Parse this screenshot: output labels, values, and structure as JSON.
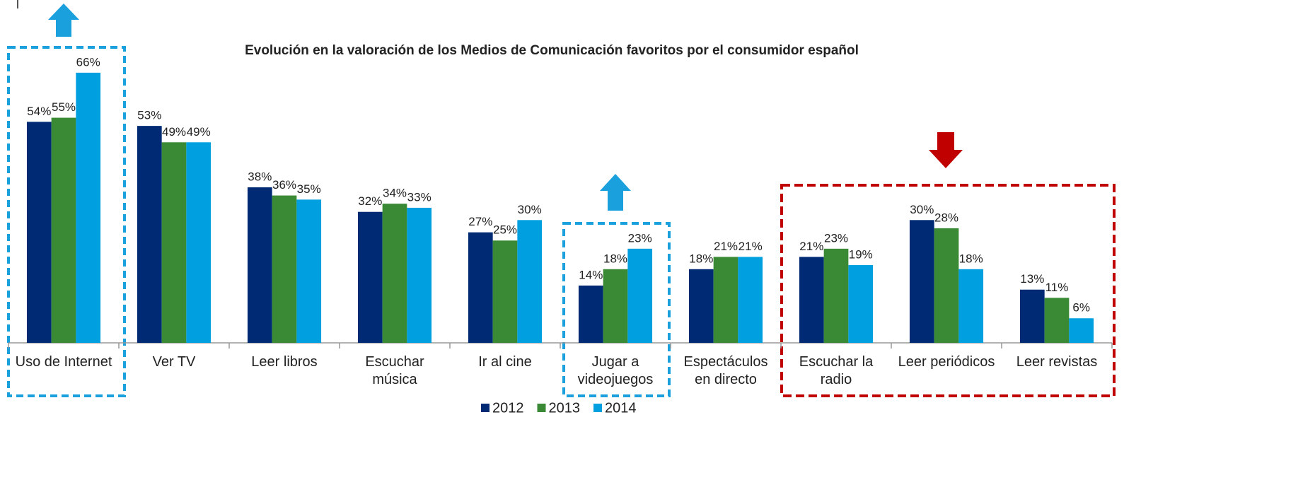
{
  "chart_data": {
    "type": "bar",
    "title": "Evolución en la valoración de los Medios de Comunicación favoritos por el consumidor español",
    "categories": [
      "Uso de Internet",
      "Ver TV",
      "Leer libros",
      "Escuchar\nmúsica",
      "Ir al cine",
      "Jugar a\nvideojuegos",
      "Espectáculos\nen directo",
      "Escuchar la\nradio",
      "Leer periódicos",
      "Leer revistas"
    ],
    "series": [
      {
        "name": "2012",
        "color": "#002a74",
        "values": [
          54,
          53,
          38,
          32,
          27,
          14,
          18,
          21,
          30,
          13
        ],
        "value_labels": [
          "54%",
          "53%",
          "38%",
          "32%",
          "27%",
          "14%",
          "18%",
          "21%",
          "30%",
          "13%"
        ]
      },
      {
        "name": "2013",
        "color": "#3a8a35",
        "values": [
          55,
          49,
          36,
          34,
          25,
          18,
          21,
          23,
          28,
          11
        ],
        "value_labels": [
          "55%",
          "49%",
          "36%",
          "34%",
          "25%",
          "18%",
          "21%",
          "23%",
          "28%",
          "11%"
        ]
      },
      {
        "name": "2014",
        "color": "#00a0e0",
        "values": [
          66,
          49,
          35,
          33,
          30,
          23,
          21,
          19,
          18,
          6
        ],
        "value_labels": [
          "66%",
          "49%",
          "35%",
          "33%",
          "30%",
          "23%",
          "21%",
          "19%",
          "18%",
          "6%"
        ]
      }
    ],
    "ylim": [
      0,
      70
    ],
    "legend": "bottom"
  }
}
